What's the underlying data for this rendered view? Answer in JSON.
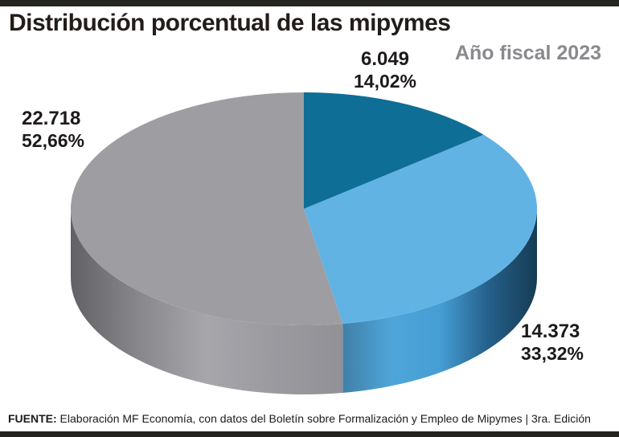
{
  "chart_data": {
    "type": "pie",
    "is_3d": true,
    "title": "Distribución porcentual de las mipymes",
    "subtitle": "Año fiscal 2023",
    "start_angle_deg": 0,
    "clockwise": true,
    "legend": "none",
    "slices": [
      {
        "value": 6049,
        "value_label": "6.049",
        "pct": 14.02,
        "pct_label": "14,02%",
        "color": "#0e6e96"
      },
      {
        "value": 14373,
        "value_label": "14.373",
        "pct": 33.32,
        "pct_label": "33,32%",
        "color": "#61b3e4",
        "side_gradient": [
          "#4180a8",
          "#4ea5d9",
          "#459ed4",
          "#25608a",
          "#163c54"
        ]
      },
      {
        "value": 22718,
        "value_label": "22.718",
        "pct": 52.66,
        "pct_label": "52,66%",
        "color": "#9e9da2",
        "side_gradient": [
          "#626166",
          "#88878c",
          "#a7a6ab",
          "#9b9a9f",
          "#929196"
        ]
      }
    ]
  },
  "footer": {
    "prefix": "FUENTE:",
    "text": " Elaboración MF Economía, con datos del Boletín sobre Formalización y Empleo de Mipymes | 3ra. Edición"
  }
}
